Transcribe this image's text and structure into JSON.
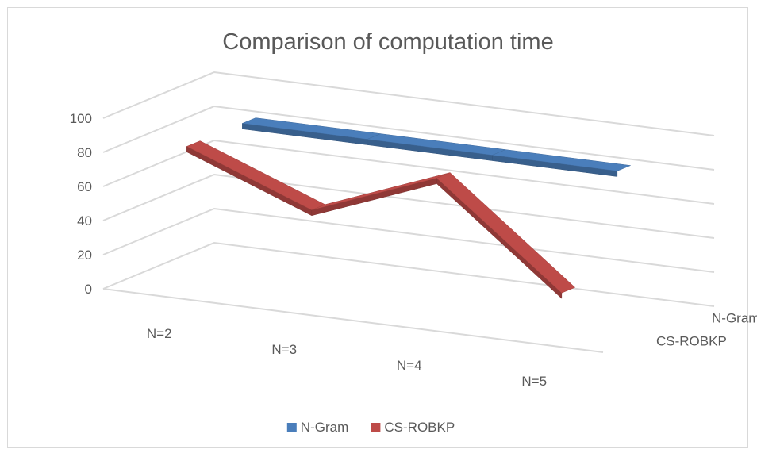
{
  "chart_data": {
    "type": "line",
    "subtype": "3d-line",
    "title": "Comparison of computation time",
    "xlabel": "",
    "ylabel": "",
    "categories": [
      "N=2",
      "N=3",
      "N=4",
      "N=5"
    ],
    "depth_categories": [
      "N-Gram",
      "CS-ROBKP"
    ],
    "ylim": [
      0,
      100
    ],
    "y_ticks": [
      0,
      20,
      40,
      60,
      80,
      100
    ],
    "grid": true,
    "legend_position": "bottom",
    "series": [
      {
        "name": "N-Gram",
        "values": [
          83,
          83,
          83,
          83
        ],
        "color": "#4a7ebb"
      },
      {
        "name": "CS-ROBKP",
        "values": [
          83,
          55,
          83,
          25
        ],
        "color": "#be4b48"
      }
    ]
  }
}
